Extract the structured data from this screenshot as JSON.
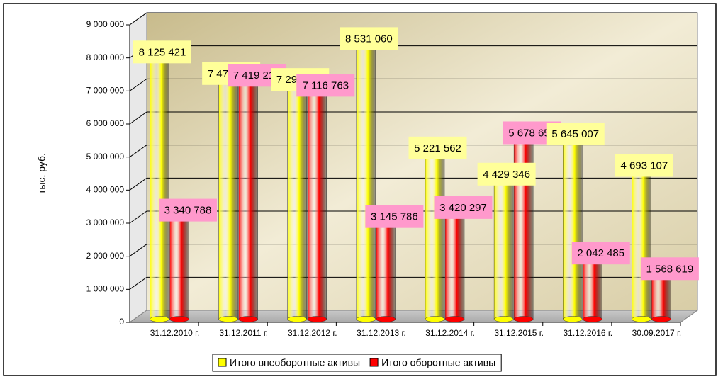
{
  "chart_data": {
    "type": "bar3d",
    "y_label": "тыс. руб.",
    "categories": [
      "31.12.2010 г.",
      "31.12.2011 г.",
      "31.12.2012 г.",
      "31.12.2013 г.",
      "31.12.2014 г.",
      "31.12.2015 г.",
      "31.12.2016 г.",
      "30.09.2017 г."
    ],
    "series": [
      {
        "name": "Итого внеоборотные активы",
        "color": "#ffff00",
        "label_color": "#ffff99",
        "values": [
          8125421,
          7472150,
          7293294,
          8531060,
          5221562,
          4429346,
          5645007,
          4693107
        ],
        "value_labels": [
          "8 125 421",
          "7 472 150",
          "7 293 294",
          "8 531 060",
          "5 221 562",
          "4 429 346",
          "5 645 007",
          "4 693 107"
        ]
      },
      {
        "name": "Итого оборотные активы",
        "color": "#ff0000",
        "label_color": "#ff99cc",
        "values": [
          3340788,
          7419216,
          7116763,
          3145786,
          3420297,
          5678651,
          2042485,
          1568619
        ],
        "value_labels": [
          "3 340 788",
          "7 419 216",
          "7 116 763",
          "3 145 786",
          "3 420 297",
          "5 678 651",
          "2 042 485",
          "1 568 619"
        ]
      }
    ],
    "ylim": [
      0,
      9000000
    ],
    "yticks": [
      0,
      {
        "value": 1000000,
        "label": "1 000 000"
      },
      {
        "value": 2000000,
        "label": "2 000 000"
      },
      {
        "value": 3000000,
        "label": "3 000 000"
      },
      {
        "value": 4000000,
        "label": "4 000 000"
      },
      {
        "value": 5000000,
        "label": "5 000 000"
      },
      {
        "value": 6000000,
        "label": "6 000 000"
      },
      {
        "value": 7000000,
        "label": "7 000 000"
      },
      {
        "value": 8000000,
        "label": "8 000 000"
      },
      {
        "value": 9000000,
        "label": "9 000 000"
      }
    ],
    "grid": true,
    "legend": "bottom"
  }
}
